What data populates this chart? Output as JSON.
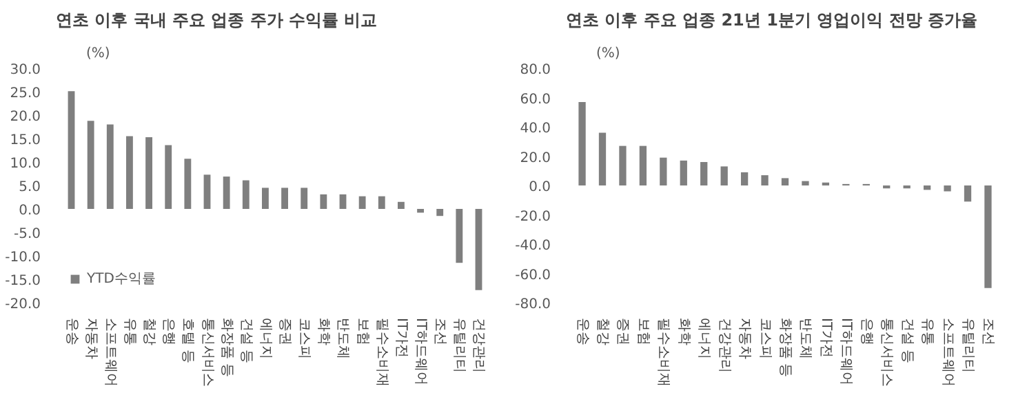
{
  "chart_data": [
    {
      "type": "bar",
      "title": "연초 이후 국내 주요 업종 주가 수익률 비교",
      "ylabel": "(%)",
      "categories": [
        "운송",
        "자동차",
        "소프트웨어",
        "유통",
        "철강",
        "은행",
        "호텔 등",
        "통신서비스",
        "화장품 등",
        "건설 등",
        "에너지",
        "증권",
        "코스피",
        "화학",
        "반도체",
        "보험",
        "필수소비재",
        "IT가전",
        "IT하드웨어",
        "조선",
        "유틸리티",
        "건강관리"
      ],
      "series": [
        {
          "name": "YTD수익률",
          "color": "#7f7f7f",
          "values": [
            25.1,
            18.8,
            18.0,
            15.5,
            15.3,
            13.6,
            10.7,
            7.3,
            6.9,
            6.1,
            4.5,
            4.5,
            4.5,
            3.1,
            3.1,
            2.7,
            2.7,
            1.5,
            -0.8,
            -1.5,
            -11.5,
            -17.3
          ]
        }
      ],
      "ylim": [
        -20,
        30
      ],
      "yticks": [
        {
          "value": -20,
          "label": "-20.0"
        },
        {
          "value": -15,
          "label": "-15.0"
        },
        {
          "value": -10,
          "label": "-10.0"
        },
        {
          "value": -5,
          "label": "-5.0"
        },
        {
          "value": 0,
          "label": "0.0"
        },
        {
          "value": 5,
          "label": "5.0"
        },
        {
          "value": 10,
          "label": "10.0"
        },
        {
          "value": 15,
          "label": "15.0"
        },
        {
          "value": 20,
          "label": "20.0"
        },
        {
          "value": 25,
          "label": "25.0"
        },
        {
          "value": 30,
          "label": "30.0"
        }
      ],
      "grid": false,
      "legend": "bottom left"
    },
    {
      "type": "bar",
      "title": "연초 이후 주요 업종 21년 1분기 영업이익 전망 증가율",
      "ylabel": "(%)",
      "categories": [
        "운송",
        "철강",
        "증권",
        "보험",
        "필수소비재",
        "화학",
        "에너지",
        "건강관리",
        "자동차",
        "코스피",
        "화장품 등",
        "반도체",
        "IT가전",
        "IT하드웨어",
        "은행",
        "통신서비스",
        "건설 등",
        "유통",
        "소프트웨어",
        "유틸리티",
        "조선"
      ],
      "series": [
        {
          "color": "#7f7f7f",
          "values": [
            57,
            36,
            27,
            27,
            19,
            17,
            16,
            13,
            9,
            7,
            5,
            3,
            2,
            1,
            1,
            -2,
            -2,
            -3,
            -4,
            -11,
            -70
          ]
        }
      ],
      "ylim": [
        -80,
        80
      ],
      "yticks": [
        {
          "value": -80,
          "label": "-80.0"
        },
        {
          "value": -60,
          "label": "-60.0"
        },
        {
          "value": -40,
          "label": "-40.0"
        },
        {
          "value": -20,
          "label": "-20.0"
        },
        {
          "value": 0,
          "label": "0.0"
        },
        {
          "value": 20,
          "label": "20.0"
        },
        {
          "value": 40,
          "label": "40.0"
        },
        {
          "value": 60,
          "label": "60.0"
        },
        {
          "value": 80,
          "label": "80.0"
        }
      ],
      "grid": false
    }
  ]
}
